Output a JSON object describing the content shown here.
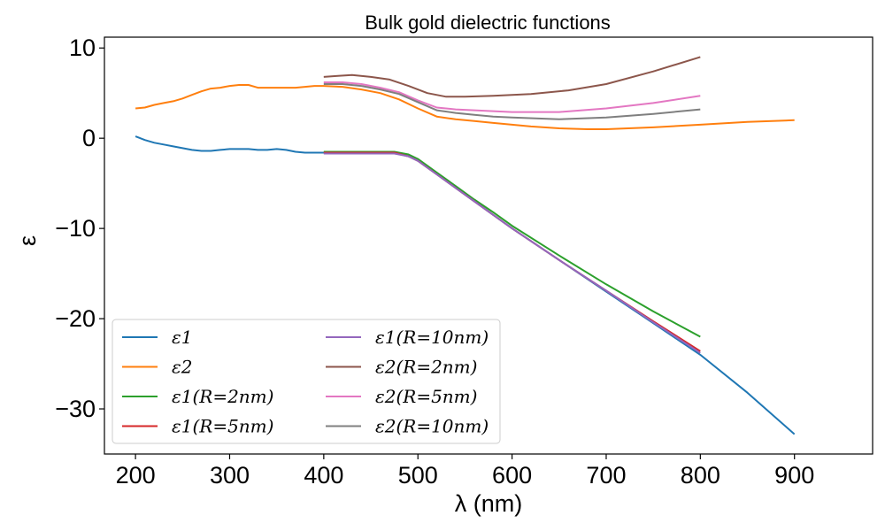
{
  "chart_data": {
    "type": "line",
    "title": "Bulk gold dielectric functions",
    "xlabel": "λ (nm)",
    "ylabel": "ε",
    "xlim": [
      167,
      983
    ],
    "ylim": [
      -35,
      11.2
    ],
    "xticks": [
      200,
      300,
      400,
      500,
      600,
      700,
      800,
      900
    ],
    "xtick_labels": [
      "200",
      "300",
      "400",
      "500",
      "600",
      "700",
      "800",
      "900"
    ],
    "yticks": [
      10,
      0,
      -10,
      -20,
      -30
    ],
    "ytick_labels": [
      "10",
      "0",
      "−10",
      "−20",
      "−30"
    ],
    "grid": false,
    "legend_position": "lower-left",
    "series": [
      {
        "name": "ε1",
        "color": "#1f77b4",
        "x": [
          200,
          210,
          220,
          230,
          240,
          250,
          260,
          270,
          280,
          290,
          300,
          310,
          320,
          330,
          340,
          350,
          360,
          370,
          380,
          390,
          400,
          420,
          440,
          460,
          475,
          490,
          500,
          520,
          540,
          560,
          580,
          600,
          650,
          700,
          750,
          800,
          850,
          900
        ],
        "y": [
          0.2,
          -0.2,
          -0.5,
          -0.7,
          -0.9,
          -1.1,
          -1.3,
          -1.4,
          -1.4,
          -1.3,
          -1.2,
          -1.2,
          -1.2,
          -1.3,
          -1.3,
          -1.2,
          -1.3,
          -1.5,
          -1.6,
          -1.6,
          -1.6,
          -1.6,
          -1.6,
          -1.6,
          -1.6,
          -2.0,
          -2.5,
          -4.0,
          -5.5,
          -7.0,
          -8.5,
          -10.0,
          -13.5,
          -17.0,
          -20.5,
          -24.0,
          -28.2,
          -32.8
        ]
      },
      {
        "name": "ε2",
        "color": "#ff7f0e",
        "x": [
          200,
          210,
          220,
          230,
          240,
          250,
          260,
          270,
          280,
          290,
          300,
          310,
          320,
          330,
          340,
          350,
          360,
          370,
          380,
          390,
          400,
          420,
          440,
          460,
          480,
          500,
          520,
          540,
          560,
          580,
          600,
          620,
          650,
          680,
          700,
          750,
          800,
          850,
          900
        ],
        "y": [
          3.3,
          3.4,
          3.7,
          3.9,
          4.1,
          4.4,
          4.8,
          5.2,
          5.5,
          5.6,
          5.8,
          5.9,
          5.9,
          5.6,
          5.6,
          5.6,
          5.6,
          5.6,
          5.7,
          5.8,
          5.8,
          5.7,
          5.4,
          5.0,
          4.3,
          3.3,
          2.4,
          2.1,
          1.9,
          1.7,
          1.5,
          1.3,
          1.1,
          1.0,
          1.0,
          1.2,
          1.5,
          1.8,
          2.0
        ]
      },
      {
        "name": "ε1(R=2nm)",
        "color": "#2ca02c",
        "x": [
          400,
          420,
          440,
          460,
          475,
          490,
          500,
          520,
          540,
          560,
          580,
          600,
          650,
          700,
          750,
          800
        ],
        "y": [
          -1.5,
          -1.5,
          -1.5,
          -1.5,
          -1.5,
          -1.8,
          -2.3,
          -3.8,
          -5.3,
          -6.8,
          -8.2,
          -9.7,
          -13.0,
          -16.2,
          -19.2,
          -22.0
        ]
      },
      {
        "name": "ε1(R=5nm)",
        "color": "#d62728",
        "x": [
          400,
          420,
          440,
          460,
          475,
          490,
          500,
          520,
          540,
          560,
          580,
          600,
          650,
          700,
          750,
          800
        ],
        "y": [
          -1.6,
          -1.6,
          -1.6,
          -1.6,
          -1.6,
          -2.0,
          -2.5,
          -4.0,
          -5.5,
          -7.0,
          -8.5,
          -10.0,
          -13.5,
          -16.9,
          -20.3,
          -23.6
        ]
      },
      {
        "name": "ε1(R=10nm)",
        "color": "#9467bd",
        "x": [
          400,
          420,
          440,
          460,
          475,
          490,
          500,
          520,
          540,
          560,
          580,
          600,
          650,
          700,
          750,
          800
        ],
        "y": [
          -1.7,
          -1.7,
          -1.7,
          -1.7,
          -1.7,
          -2.0,
          -2.5,
          -4.0,
          -5.5,
          -7.0,
          -8.5,
          -10.0,
          -13.5,
          -16.9,
          -20.4,
          -23.8
        ]
      },
      {
        "name": "ε2(R=2nm)",
        "color": "#8c564b",
        "x": [
          400,
          415,
          430,
          450,
          470,
          490,
          510,
          530,
          550,
          580,
          620,
          660,
          700,
          750,
          800
        ],
        "y": [
          6.8,
          6.9,
          7.0,
          6.8,
          6.5,
          5.8,
          5.0,
          4.6,
          4.6,
          4.7,
          4.9,
          5.3,
          6.0,
          7.4,
          9.0
        ]
      },
      {
        "name": "ε2(R=5nm)",
        "color": "#e377c2",
        "x": [
          400,
          420,
          440,
          460,
          480,
          500,
          520,
          540,
          560,
          580,
          600,
          650,
          700,
          750,
          800
        ],
        "y": [
          6.2,
          6.2,
          6.0,
          5.6,
          5.1,
          4.2,
          3.4,
          3.2,
          3.1,
          3.0,
          2.9,
          2.9,
          3.3,
          3.9,
          4.7
        ]
      },
      {
        "name": "ε2(R=10nm)",
        "color": "#7f7f7f",
        "x": [
          400,
          420,
          440,
          460,
          480,
          500,
          520,
          540,
          560,
          580,
          600,
          650,
          700,
          750,
          800
        ],
        "y": [
          6.0,
          6.0,
          5.8,
          5.4,
          4.9,
          4.0,
          3.1,
          2.8,
          2.6,
          2.4,
          2.3,
          2.1,
          2.3,
          2.7,
          3.2
        ]
      }
    ]
  }
}
